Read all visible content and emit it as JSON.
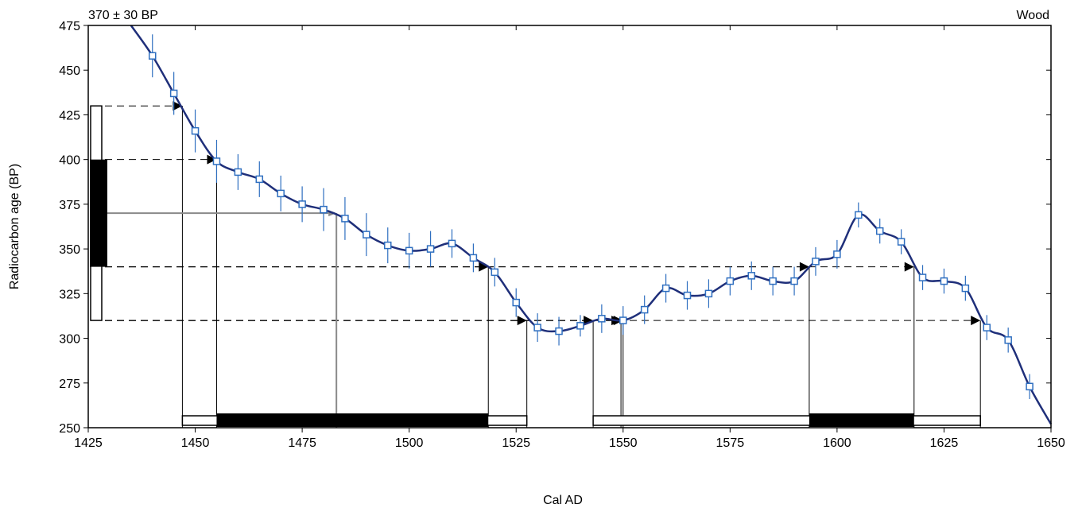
{
  "chart_data": {
    "type": "line",
    "title_left": "370 ± 30 BP",
    "title_right": "Wood",
    "xlabel": "Cal AD",
    "ylabel": "Radiocarbon age (BP)",
    "xlim": [
      1425,
      1650
    ],
    "ylim": [
      250,
      475
    ],
    "xticks": [
      "1425",
      "1450",
      "1475",
      "1500",
      "1525",
      "1550",
      "1575",
      "1600",
      "1625",
      "1650"
    ],
    "yticks": [
      "250",
      "275",
      "300",
      "325",
      "350",
      "375",
      "400",
      "425",
      "450",
      "475"
    ],
    "grid": false,
    "curve_color": "#1f2f7a",
    "marker_color": "#2f6fc0",
    "calibration_curve": {
      "x": [
        1435,
        1440,
        1445,
        1450,
        1455,
        1460,
        1465,
        1470,
        1475,
        1480,
        1485,
        1490,
        1495,
        1500,
        1505,
        1510,
        1515,
        1520,
        1525,
        1530,
        1535,
        1540,
        1545,
        1550,
        1555,
        1560,
        1565,
        1570,
        1575,
        1580,
        1585,
        1590,
        1595,
        1600,
        1605,
        1610,
        1615,
        1620,
        1625,
        1630,
        1635,
        1640,
        1645,
        1650
      ],
      "y": [
        475,
        458,
        437,
        416,
        399,
        393,
        389,
        381,
        375,
        372,
        367,
        358,
        352,
        349,
        350,
        353,
        345,
        337,
        320,
        306,
        304,
        307,
        311,
        310,
        316,
        328,
        324,
        325,
        332,
        335,
        332,
        332,
        343,
        347,
        369,
        360,
        354,
        334,
        332,
        328,
        306,
        299,
        273,
        252
      ]
    },
    "data_points": {
      "x": [
        1440,
        1445,
        1450,
        1455,
        1460,
        1465,
        1470,
        1475,
        1480,
        1485,
        1490,
        1495,
        1500,
        1505,
        1510,
        1515,
        1520,
        1525,
        1530,
        1535,
        1540,
        1545,
        1550,
        1555,
        1560,
        1565,
        1570,
        1575,
        1580,
        1585,
        1590,
        1595,
        1600,
        1605,
        1610,
        1615,
        1620,
        1625,
        1630,
        1635,
        1640,
        1645
      ],
      "y": [
        458,
        437,
        416,
        399,
        393,
        389,
        381,
        375,
        372,
        367,
        358,
        352,
        349,
        350,
        353,
        345,
        337,
        320,
        306,
        304,
        307,
        311,
        310,
        316,
        328,
        324,
        325,
        332,
        335,
        332,
        332,
        343,
        347,
        369,
        360,
        354,
        334,
        332,
        328,
        306,
        299,
        273
      ],
      "error": [
        12,
        12,
        12,
        12,
        10,
        10,
        10,
        10,
        12,
        12,
        12,
        10,
        10,
        10,
        8,
        8,
        8,
        8,
        8,
        8,
        6,
        8,
        8,
        8,
        8,
        8,
        8,
        8,
        8,
        8,
        8,
        8,
        8,
        7,
        7,
        7,
        7,
        7,
        7,
        7,
        7,
        7
      ]
    },
    "measured_age": 370,
    "range_1sigma": [
      340,
      400
    ],
    "range_2sigma": [
      310,
      430
    ],
    "calibrated_median": 1483,
    "arrows": [
      {
        "y": 430,
        "x_end": 1447
      },
      {
        "y": 400,
        "x_end": 1455
      },
      {
        "y": 340,
        "x_end": 1518.5
      },
      {
        "y": 340,
        "x_end": 1593.5
      },
      {
        "y": 340,
        "x_end": 1618
      },
      {
        "y": 310,
        "x_end": 1527.5
      },
      {
        "y": 310,
        "x_end": 1543
      },
      {
        "y": 310,
        "x_end": 1549.5
      },
      {
        "y": 310,
        "x_end": 1550
      },
      {
        "y": 310,
        "x_end": 1633.5
      }
    ],
    "range_verticals": [
      1447,
      1455,
      1518.5,
      1527.5,
      1543,
      1549.5,
      1550,
      1593.5,
      1618,
      1633.5
    ],
    "one_sigma_ranges": [
      [
        1455,
        1518.5
      ],
      [
        1593.5,
        1618
      ]
    ],
    "two_sigma_ranges": [
      [
        1447,
        1527.5
      ],
      [
        1543,
        1633.5
      ]
    ]
  }
}
